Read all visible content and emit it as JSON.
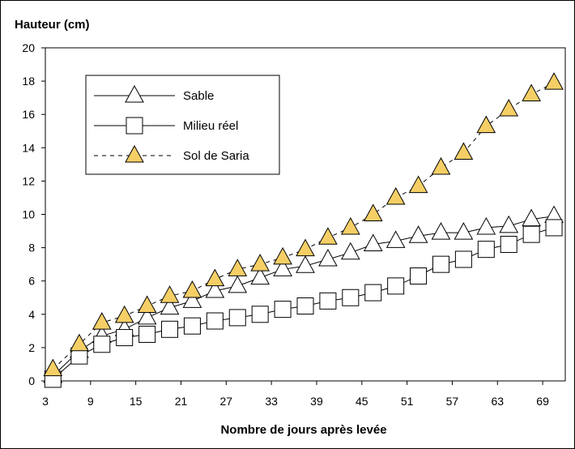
{
  "chart_data": {
    "type": "line",
    "ylabel": "Hauteur (cm)",
    "xlabel": "Nombre de jours après levée",
    "xlim": [
      3,
      72
    ],
    "ylim": [
      0,
      20
    ],
    "xticks": [
      3,
      9,
      15,
      21,
      27,
      33,
      39,
      45,
      51,
      57,
      63,
      69
    ],
    "yticks": [
      0,
      2,
      4,
      6,
      8,
      10,
      12,
      14,
      16,
      18,
      20
    ],
    "grid": false,
    "legend_position": "top-left",
    "series": [
      {
        "name": "Sable",
        "marker": "triangle",
        "marker_fill": "#ffffff",
        "line_style": "solid",
        "points": [
          [
            4,
            0.3
          ],
          [
            7.5,
            1.8
          ],
          [
            10.5,
            2.7
          ],
          [
            13.5,
            3.1
          ],
          [
            16.5,
            3.8
          ],
          [
            19.5,
            4.4
          ],
          [
            22.5,
            4.8
          ],
          [
            25.5,
            5.4
          ],
          [
            28.5,
            5.7
          ],
          [
            31.5,
            6.2
          ],
          [
            34.5,
            6.7
          ],
          [
            37.5,
            6.9
          ],
          [
            40.5,
            7.3
          ],
          [
            43.5,
            7.7
          ],
          [
            46.5,
            8.2
          ],
          [
            49.5,
            8.4
          ],
          [
            52.5,
            8.7
          ],
          [
            55.5,
            8.9
          ],
          [
            58.5,
            8.9
          ],
          [
            61.5,
            9.2
          ],
          [
            64.5,
            9.3
          ],
          [
            67.5,
            9.7
          ],
          [
            70.5,
            9.9
          ]
        ]
      },
      {
        "name": "Milieu réel",
        "marker": "square",
        "marker_fill": "#ffffff",
        "line_style": "solid",
        "points": [
          [
            4,
            0.1
          ],
          [
            7.5,
            1.5
          ],
          [
            10.5,
            2.2
          ],
          [
            13.5,
            2.6
          ],
          [
            16.5,
            2.8
          ],
          [
            19.5,
            3.1
          ],
          [
            22.5,
            3.3
          ],
          [
            25.5,
            3.6
          ],
          [
            28.5,
            3.8
          ],
          [
            31.5,
            4.0
          ],
          [
            34.5,
            4.3
          ],
          [
            37.5,
            4.5
          ],
          [
            40.5,
            4.8
          ],
          [
            43.5,
            5.0
          ],
          [
            46.5,
            5.3
          ],
          [
            49.5,
            5.7
          ],
          [
            52.5,
            6.3
          ],
          [
            55.5,
            7.0
          ],
          [
            58.5,
            7.3
          ],
          [
            61.5,
            7.9
          ],
          [
            64.5,
            8.2
          ],
          [
            67.5,
            8.8
          ],
          [
            70.5,
            9.2
          ]
        ]
      },
      {
        "name": "Sol de Saria",
        "marker": "triangle",
        "marker_fill": "#f5cf66",
        "line_style": "dashed",
        "points": [
          [
            4,
            0.7
          ],
          [
            7.5,
            2.2
          ],
          [
            10.5,
            3.5
          ],
          [
            13.5,
            3.9
          ],
          [
            16.5,
            4.5
          ],
          [
            19.5,
            5.1
          ],
          [
            22.5,
            5.4
          ],
          [
            25.5,
            6.1
          ],
          [
            28.5,
            6.7
          ],
          [
            31.5,
            7.0
          ],
          [
            34.5,
            7.4
          ],
          [
            37.5,
            7.9
          ],
          [
            40.5,
            8.6
          ],
          [
            43.5,
            9.2
          ],
          [
            46.5,
            10.0
          ],
          [
            49.5,
            11.0
          ],
          [
            52.5,
            11.7
          ],
          [
            55.5,
            12.8
          ],
          [
            58.5,
            13.7
          ],
          [
            61.5,
            15.3
          ],
          [
            64.5,
            16.3
          ],
          [
            67.5,
            17.2
          ],
          [
            70.5,
            17.9
          ]
        ]
      }
    ]
  }
}
